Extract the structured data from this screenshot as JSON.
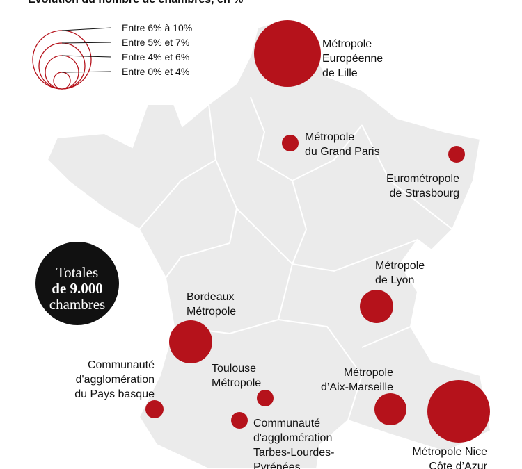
{
  "title": "Évolution du nombre de chambres, en %",
  "legend": [
    "Entre 6% à 10%",
    "Entre 5% et 7%",
    "Entre 4% et 6%",
    "Entre 0% et 4%"
  ],
  "total": [
    "Totales",
    "de 9.000",
    "chambres"
  ],
  "cities": [
    {
      "lines": [
        "Métropole",
        "Européenne",
        "de Lille"
      ]
    },
    {
      "lines": [
        "Métropole",
        "du Grand Paris"
      ]
    },
    {
      "lines": [
        "Eurométropole",
        "de Strasbourg"
      ]
    },
    {
      "lines": [
        "Métropole",
        "de Lyon"
      ]
    },
    {
      "lines": [
        "Bordeaux",
        "Métropole"
      ]
    },
    {
      "lines": [
        "Toulouse",
        "Métropole"
      ]
    },
    {
      "lines": [
        "Communauté",
        "d'agglomération",
        "Tarbes-Lourdes-",
        "Pyrénées"
      ]
    },
    {
      "lines": [
        "Communauté",
        "d'agglomération",
        "du Pays basque"
      ]
    },
    {
      "lines": [
        "Métropole",
        "d’Aix-Marseille"
      ]
    },
    {
      "lines": [
        "Métropole Nice",
        "Côte d’Azur"
      ]
    }
  ]
}
